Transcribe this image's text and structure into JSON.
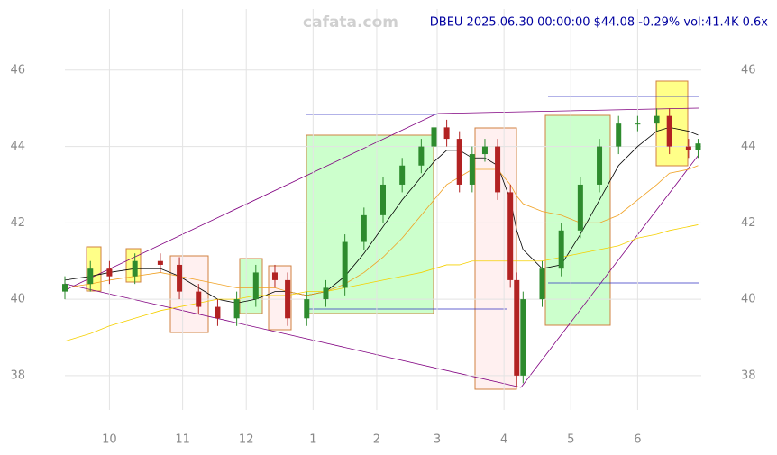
{
  "chart_data": {
    "type": "candlestick",
    "title": "DBEU 2025.06.30 00:00:00 $44.08 -0.29% vol:41.4K 0.6x",
    "watermark": "cafata.com",
    "grid": true,
    "up_color": "#2e8b2e",
    "down_color": "#b22222",
    "xlim": [
      0,
      200
    ],
    "xticks": [
      {
        "value": 14,
        "label": "10"
      },
      {
        "value": 37,
        "label": "11"
      },
      {
        "value": 57,
        "label": "12"
      },
      {
        "value": 78,
        "label": "1"
      },
      {
        "value": 98,
        "label": "2"
      },
      {
        "value": 117,
        "label": "3"
      },
      {
        "value": 138,
        "label": "4"
      },
      {
        "value": 159,
        "label": "5"
      },
      {
        "value": 180,
        "label": "6"
      }
    ],
    "ylim": [
      37.1,
      47.6
    ],
    "yticks": [
      38,
      40,
      42,
      44,
      46
    ],
    "x": [
      0,
      8,
      14,
      22,
      30,
      36,
      42,
      48,
      54,
      60,
      66,
      70,
      76,
      82,
      88,
      94,
      100,
      106,
      112,
      116,
      120,
      124,
      128,
      132,
      136,
      140,
      142,
      144,
      150,
      156,
      162,
      168,
      174,
      180,
      186,
      190,
      196,
      199
    ],
    "open": [
      40.2,
      40.4,
      40.8,
      40.6,
      41.0,
      40.9,
      40.2,
      39.8,
      39.5,
      40.0,
      40.7,
      40.5,
      39.5,
      40.0,
      40.3,
      41.5,
      42.2,
      43.0,
      43.5,
      44.0,
      44.5,
      44.2,
      43.0,
      43.8,
      44.0,
      42.8,
      40.5,
      38.0,
      40.0,
      40.8,
      41.8,
      43.0,
      44.0,
      44.6,
      44.6,
      44.8,
      44.0,
      43.9
    ],
    "high": [
      40.6,
      41.0,
      41.0,
      41.2,
      41.2,
      41.1,
      40.4,
      40.0,
      40.2,
      40.9,
      40.9,
      40.7,
      40.2,
      40.5,
      41.7,
      42.4,
      43.2,
      43.7,
      44.2,
      44.7,
      44.7,
      44.4,
      44.0,
      44.2,
      44.2,
      43.0,
      40.7,
      40.2,
      41.0,
      42.0,
      43.2,
      44.2,
      44.8,
      44.8,
      45.0,
      45.0,
      44.2,
      44.2
    ],
    "low": [
      40.0,
      40.2,
      40.4,
      40.4,
      40.7,
      40.0,
      39.6,
      39.3,
      39.3,
      39.8,
      40.3,
      39.3,
      39.3,
      39.8,
      40.1,
      41.3,
      42.0,
      42.8,
      43.3,
      43.8,
      44.0,
      42.8,
      42.8,
      43.6,
      42.6,
      40.3,
      37.7,
      37.8,
      39.8,
      40.6,
      41.6,
      42.8,
      43.8,
      44.4,
      44.4,
      43.8,
      43.7,
      43.7
    ],
    "close": [
      40.4,
      40.8,
      40.6,
      41.0,
      40.9,
      40.2,
      39.8,
      39.5,
      40.0,
      40.7,
      40.5,
      39.5,
      40.0,
      40.3,
      41.5,
      42.2,
      43.0,
      43.5,
      44.0,
      44.5,
      44.2,
      43.0,
      43.8,
      44.0,
      42.8,
      40.5,
      38.0,
      40.0,
      40.8,
      41.8,
      43.0,
      44.0,
      44.6,
      44.6,
      44.8,
      44.0,
      43.9,
      44.08
    ],
    "overlays": [
      {
        "color": "#000000",
        "values": [
          40.5,
          40.6,
          40.7,
          40.8,
          40.8,
          40.6,
          40.3,
          40.0,
          39.9,
          40.0,
          40.2,
          40.2,
          40.1,
          40.2,
          40.6,
          41.2,
          41.9,
          42.6,
          43.2,
          43.6,
          43.9,
          43.9,
          43.7,
          43.7,
          43.5,
          42.6,
          41.8,
          41.3,
          40.8,
          40.9,
          41.7,
          42.6,
          43.5,
          44.0,
          44.4,
          44.5,
          44.4,
          44.3
        ]
      },
      {
        "color": "#f0a020",
        "values": [
          40.3,
          40.4,
          40.5,
          40.6,
          40.7,
          40.6,
          40.5,
          40.4,
          40.3,
          40.3,
          40.3,
          40.2,
          40.1,
          40.2,
          40.4,
          40.7,
          41.1,
          41.6,
          42.2,
          42.6,
          43.0,
          43.2,
          43.4,
          43.4,
          43.4,
          43.0,
          42.7,
          42.5,
          42.3,
          42.2,
          42.0,
          42.0,
          42.2,
          42.6,
          43.0,
          43.3,
          43.4,
          43.5
        ]
      },
      {
        "color": "#f5d000",
        "values": [
          38.9,
          39.1,
          39.3,
          39.5,
          39.7,
          39.8,
          39.9,
          40.0,
          40.0,
          40.1,
          40.1,
          40.1,
          40.2,
          40.2,
          40.3,
          40.4,
          40.5,
          40.6,
          40.7,
          40.8,
          40.9,
          40.9,
          41.0,
          41.0,
          41.0,
          41.0,
          41.0,
          41.0,
          41.0,
          41.1,
          41.2,
          41.3,
          41.4,
          41.6,
          41.7,
          41.8,
          41.9,
          41.95
        ]
      }
    ]
  }
}
